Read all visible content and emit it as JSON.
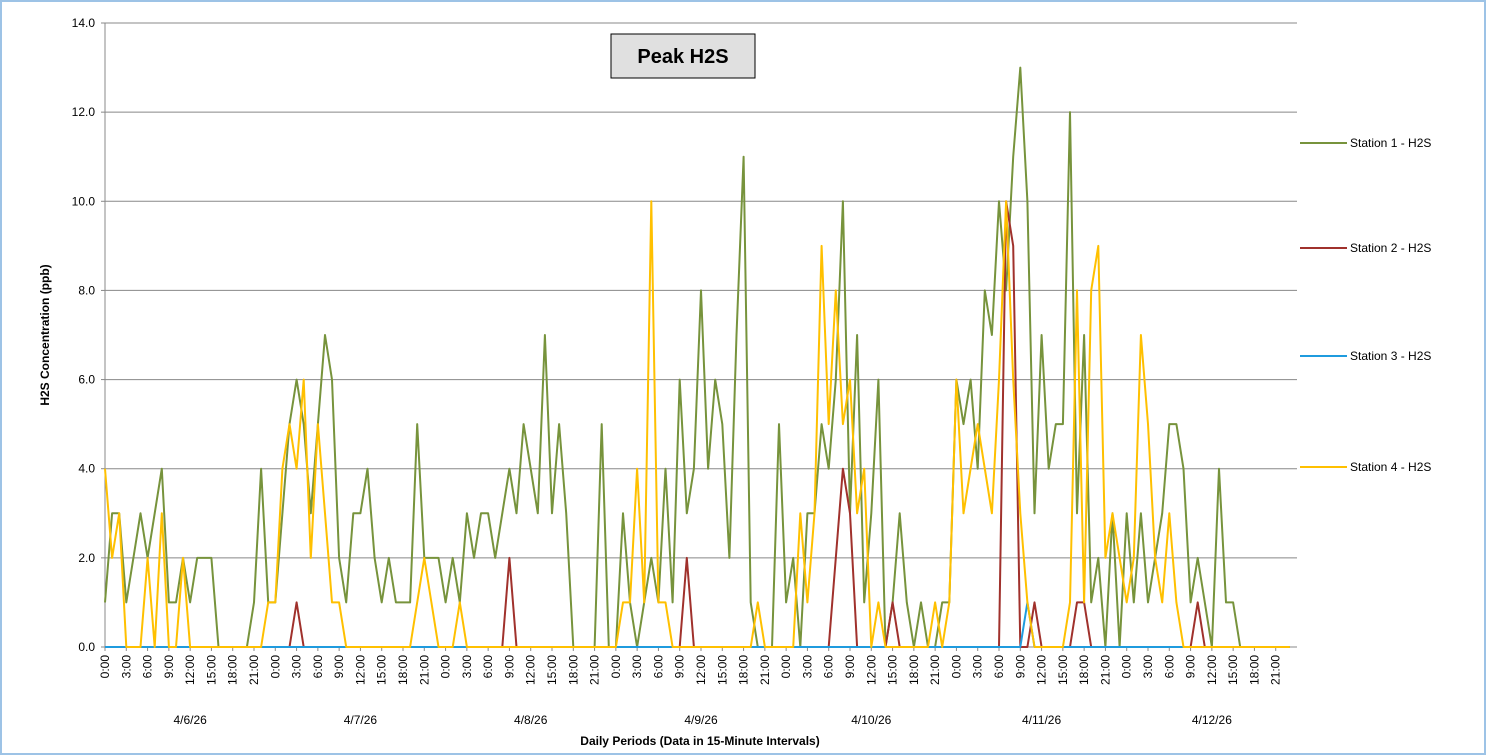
{
  "chart_data": {
    "type": "line",
    "title": "Peak H2S",
    "ylabel": "H2S Concentration (ppb)",
    "xlabel": "Daily Periods (Data in 15-Minute Intervals)",
    "ylim": [
      0,
      14
    ],
    "yticks": [
      {
        "value": 0,
        "label": "0.0"
      },
      {
        "value": 2,
        "label": "2.0"
      },
      {
        "value": 4,
        "label": "4.0"
      },
      {
        "value": 6,
        "label": "6.0"
      },
      {
        "value": 8,
        "label": "8.0"
      },
      {
        "value": 10,
        "label": "10.0"
      },
      {
        "value": 12,
        "label": "12.0"
      },
      {
        "value": 14,
        "label": "14.0"
      }
    ],
    "grid": true,
    "xlim": [
      0,
      168
    ],
    "xticks": [
      {
        "value": 0,
        "label": "0:00"
      },
      {
        "value": 3,
        "label": "3:00"
      },
      {
        "value": 6,
        "label": "6:00"
      },
      {
        "value": 9,
        "label": "9:00"
      },
      {
        "value": 12,
        "label": "12:00"
      },
      {
        "value": 15,
        "label": "15:00"
      },
      {
        "value": 18,
        "label": "18:00"
      },
      {
        "value": 21,
        "label": "21:00"
      },
      {
        "value": 24,
        "label": "0:00"
      },
      {
        "value": 27,
        "label": "3:00"
      },
      {
        "value": 30,
        "label": "6:00"
      },
      {
        "value": 33,
        "label": "9:00"
      },
      {
        "value": 36,
        "label": "12:00"
      },
      {
        "value": 39,
        "label": "15:00"
      },
      {
        "value": 42,
        "label": "18:00"
      },
      {
        "value": 45,
        "label": "21:00"
      },
      {
        "value": 48,
        "label": "0:00"
      },
      {
        "value": 51,
        "label": "3:00"
      },
      {
        "value": 54,
        "label": "6:00"
      },
      {
        "value": 57,
        "label": "9:00"
      },
      {
        "value": 60,
        "label": "12:00"
      },
      {
        "value": 63,
        "label": "15:00"
      },
      {
        "value": 66,
        "label": "18:00"
      },
      {
        "value": 69,
        "label": "21:00"
      },
      {
        "value": 72,
        "label": "0:00"
      },
      {
        "value": 75,
        "label": "3:00"
      },
      {
        "value": 78,
        "label": "6:00"
      },
      {
        "value": 81,
        "label": "9:00"
      },
      {
        "value": 84,
        "label": "12:00"
      },
      {
        "value": 87,
        "label": "15:00"
      },
      {
        "value": 90,
        "label": "18:00"
      },
      {
        "value": 93,
        "label": "21:00"
      },
      {
        "value": 96,
        "label": "0:00"
      },
      {
        "value": 99,
        "label": "3:00"
      },
      {
        "value": 102,
        "label": "6:00"
      },
      {
        "value": 105,
        "label": "9:00"
      },
      {
        "value": 108,
        "label": "12:00"
      },
      {
        "value": 111,
        "label": "15:00"
      },
      {
        "value": 114,
        "label": "18:00"
      },
      {
        "value": 117,
        "label": "21:00"
      },
      {
        "value": 120,
        "label": "0:00"
      },
      {
        "value": 123,
        "label": "3:00"
      },
      {
        "value": 126,
        "label": "6:00"
      },
      {
        "value": 129,
        "label": "9:00"
      },
      {
        "value": 132,
        "label": "12:00"
      },
      {
        "value": 135,
        "label": "15:00"
      },
      {
        "value": 138,
        "label": "18:00"
      },
      {
        "value": 141,
        "label": "21:00"
      },
      {
        "value": 144,
        "label": "0:00"
      },
      {
        "value": 147,
        "label": "3:00"
      },
      {
        "value": 150,
        "label": "6:00"
      },
      {
        "value": 153,
        "label": "9:00"
      },
      {
        "value": 156,
        "label": "12:00"
      },
      {
        "value": 159,
        "label": "15:00"
      },
      {
        "value": 162,
        "label": "18:00"
      },
      {
        "value": 165,
        "label": "21:00"
      }
    ],
    "day_labels": [
      {
        "value": 12,
        "label": "4/6/26"
      },
      {
        "value": 36,
        "label": "4/7/26"
      },
      {
        "value": 60,
        "label": "4/8/26"
      },
      {
        "value": 84,
        "label": "4/9/26"
      },
      {
        "value": 108,
        "label": "4/10/26"
      },
      {
        "value": 132,
        "label": "4/11/26"
      },
      {
        "value": 156,
        "label": "4/12/26"
      }
    ],
    "legend": "right",
    "x": [
      0,
      1,
      2,
      3,
      4,
      5,
      6,
      7,
      8,
      9,
      10,
      11,
      12,
      13,
      14,
      15,
      16,
      17,
      18,
      19,
      20,
      21,
      22,
      23,
      24,
      25,
      26,
      27,
      28,
      29,
      30,
      31,
      32,
      33,
      34,
      35,
      36,
      37,
      38,
      39,
      40,
      41,
      42,
      43,
      44,
      45,
      46,
      47,
      48,
      49,
      50,
      51,
      52,
      53,
      54,
      55,
      56,
      57,
      58,
      59,
      60,
      61,
      62,
      63,
      64,
      65,
      66,
      67,
      68,
      69,
      70,
      71,
      72,
      73,
      74,
      75,
      76,
      77,
      78,
      79,
      80,
      81,
      82,
      83,
      84,
      85,
      86,
      87,
      88,
      89,
      90,
      91,
      92,
      93,
      94,
      95,
      96,
      97,
      98,
      99,
      100,
      101,
      102,
      103,
      104,
      105,
      106,
      107,
      108,
      109,
      110,
      111,
      112,
      113,
      114,
      115,
      116,
      117,
      118,
      119,
      120,
      121,
      122,
      123,
      124,
      125,
      126,
      127,
      128,
      129,
      130,
      131,
      132,
      133,
      134,
      135,
      136,
      137,
      138,
      139,
      140,
      141,
      142,
      143,
      144,
      145,
      146,
      147,
      148,
      149,
      150,
      151,
      152,
      153,
      154,
      155,
      156,
      157,
      158,
      159,
      160,
      161,
      162,
      163,
      164,
      165,
      166,
      167
    ],
    "series": [
      {
        "name": "Station 1 - H2S",
        "color": "#77933c",
        "values": [
          1,
          3,
          3,
          1,
          2,
          3,
          2,
          3,
          4,
          1,
          1,
          2,
          1,
          2,
          2,
          2,
          0,
          0,
          0,
          0,
          0,
          1,
          4,
          1,
          1,
          3,
          5,
          6,
          5,
          3,
          5,
          7,
          6,
          2,
          1,
          3,
          3,
          4,
          2,
          1,
          2,
          1,
          1,
          1,
          5,
          2,
          2,
          2,
          1,
          2,
          1,
          3,
          2,
          3,
          3,
          2,
          3,
          4,
          3,
          5,
          4,
          3,
          7,
          3,
          5,
          3,
          0,
          0,
          0,
          0,
          5,
          0,
          0,
          3,
          1,
          0,
          1,
          2,
          1,
          4,
          1,
          6,
          3,
          4,
          8,
          4,
          6,
          5,
          2,
          7,
          11,
          1,
          0,
          0,
          0,
          5,
          1,
          2,
          0,
          3,
          3,
          5,
          4,
          6,
          10,
          3,
          7,
          1,
          3,
          6,
          0,
          1,
          3,
          1,
          0,
          1,
          0,
          0,
          1,
          1,
          6,
          5,
          6,
          4,
          8,
          7,
          10,
          8,
          11,
          13,
          10,
          3,
          7,
          4,
          5,
          5,
          12,
          3,
          7,
          1,
          2,
          0,
          3,
          0,
          3,
          1,
          3,
          1,
          2,
          3,
          5,
          5,
          4,
          1,
          2,
          1,
          0,
          4,
          1,
          1,
          0,
          0,
          0,
          0,
          0,
          0,
          0,
          0
        ]
      },
      {
        "name": "Station 2 - H2S",
        "color": "#a0312c",
        "values": [
          0,
          0,
          0,
          0,
          0,
          0,
          0,
          0,
          0,
          0,
          0,
          0,
          0,
          0,
          0,
          0,
          0,
          0,
          0,
          0,
          0,
          0,
          0,
          0,
          0,
          0,
          0,
          1,
          0,
          0,
          0,
          0,
          0,
          0,
          0,
          0,
          0,
          0,
          0,
          0,
          0,
          0,
          0,
          0,
          0,
          0,
          0,
          0,
          0,
          0,
          0,
          0,
          0,
          0,
          0,
          0,
          0,
          2,
          0,
          0,
          0,
          0,
          0,
          0,
          0,
          0,
          0,
          0,
          0,
          0,
          0,
          0,
          0,
          0,
          0,
          0,
          0,
          0,
          0,
          0,
          0,
          0,
          2,
          0,
          0,
          0,
          0,
          0,
          0,
          0,
          0,
          0,
          0,
          0,
          0,
          0,
          0,
          0,
          0,
          0,
          0,
          0,
          0,
          2,
          4,
          3,
          0,
          0,
          0,
          0,
          0,
          1,
          0,
          0,
          0,
          0,
          0,
          0,
          0,
          0,
          0,
          0,
          0,
          0,
          0,
          0,
          0,
          10,
          9,
          0,
          0,
          1,
          0,
          0,
          0,
          0,
          0,
          1,
          1,
          0,
          0,
          0,
          0,
          0,
          0,
          0,
          0,
          0,
          0,
          0,
          0,
          0,
          0,
          0,
          1,
          0,
          0,
          0,
          0,
          0,
          0,
          0,
          0,
          0,
          0,
          0,
          0,
          0
        ]
      },
      {
        "name": "Station 3 - H2S",
        "color": "#1f9bde",
        "values": [
          0,
          0,
          0,
          0,
          0,
          0,
          0,
          0,
          0,
          0,
          0,
          0,
          0,
          0,
          0,
          0,
          0,
          0,
          0,
          0,
          0,
          0,
          0,
          0,
          0,
          0,
          0,
          0,
          0,
          0,
          0,
          0,
          0,
          0,
          0,
          0,
          0,
          0,
          0,
          0,
          0,
          0,
          0,
          0,
          0,
          0,
          0,
          0,
          0,
          0,
          0,
          0,
          0,
          0,
          0,
          0,
          0,
          0,
          0,
          0,
          0,
          0,
          0,
          0,
          0,
          0,
          0,
          0,
          0,
          0,
          0,
          0,
          0,
          0,
          0,
          0,
          0,
          0,
          0,
          0,
          0,
          0,
          0,
          0,
          0,
          0,
          0,
          0,
          0,
          0,
          0,
          0,
          0,
          0,
          0,
          0,
          0,
          0,
          0,
          0,
          0,
          0,
          0,
          0,
          0,
          0,
          0,
          0,
          0,
          0,
          0,
          0,
          0,
          0,
          0,
          0,
          0,
          0,
          0,
          0,
          0,
          0,
          0,
          0,
          0,
          0,
          0,
          0,
          0,
          0,
          1,
          0,
          0,
          0,
          0,
          0,
          0,
          0,
          0,
          0,
          0,
          0,
          0,
          0,
          0,
          0,
          0,
          0,
          0,
          0,
          0,
          0,
          0,
          0,
          0,
          0,
          0,
          0,
          0,
          0,
          0,
          0,
          0,
          0,
          0,
          0,
          0,
          0
        ]
      },
      {
        "name": "Station 4 - H2S",
        "color": "#ffc000",
        "values": [
          4,
          2,
          3,
          0,
          0,
          0,
          2,
          0,
          3,
          0,
          0,
          2,
          0,
          0,
          0,
          0,
          0,
          0,
          0,
          0,
          0,
          0,
          0,
          1,
          1,
          4,
          5,
          4,
          6,
          2,
          5,
          3,
          1,
          1,
          0,
          0,
          0,
          0,
          0,
          0,
          0,
          0,
          0,
          0,
          1,
          2,
          1,
          0,
          0,
          0,
          1,
          0,
          0,
          0,
          0,
          0,
          0,
          0,
          0,
          0,
          0,
          0,
          0,
          0,
          0,
          0,
          0,
          0,
          0,
          0,
          0,
          0,
          0,
          1,
          1,
          4,
          1,
          10,
          1,
          1,
          0,
          0,
          0,
          0,
          0,
          0,
          0,
          0,
          0,
          0,
          0,
          0,
          1,
          0,
          0,
          0,
          0,
          0,
          3,
          1,
          3,
          9,
          5,
          8,
          5,
          6,
          3,
          4,
          0,
          1,
          0,
          0,
          0,
          0,
          0,
          0,
          0,
          1,
          0,
          1,
          6,
          3,
          4,
          5,
          4,
          3,
          6,
          10,
          6,
          3,
          1,
          0,
          0,
          0,
          0,
          0,
          1,
          8,
          1,
          8,
          9,
          2,
          3,
          2,
          1,
          2,
          7,
          5,
          2,
          1,
          3,
          1,
          0,
          0,
          0,
          0,
          0,
          0,
          0,
          0,
          0,
          0,
          0,
          0,
          0,
          0,
          0,
          0
        ]
      }
    ]
  }
}
